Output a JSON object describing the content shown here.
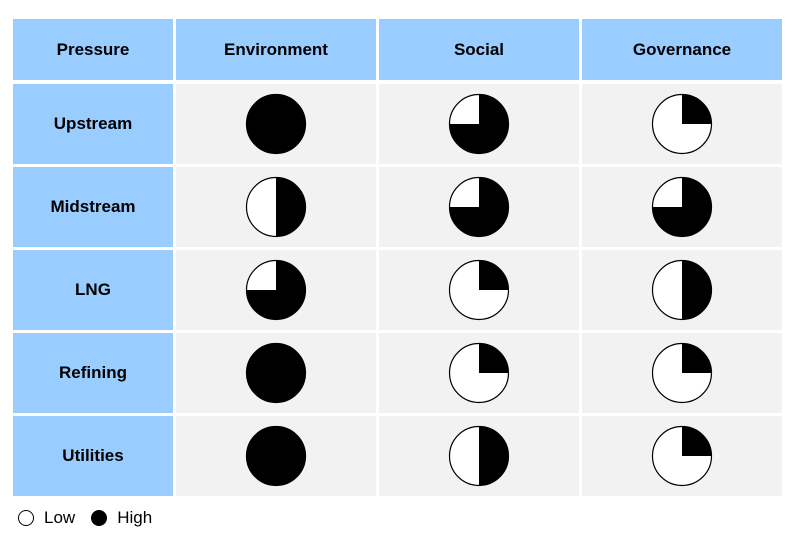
{
  "chart_data": {
    "type": "table",
    "corner_label": "Pressure",
    "columns": [
      "Environment",
      "Social",
      "Governance"
    ],
    "rows": [
      {
        "label": "Upstream",
        "values": [
          1.0,
          0.75,
          0.25
        ]
      },
      {
        "label": "Midstream",
        "values": [
          0.5,
          0.75,
          0.75
        ]
      },
      {
        "label": "LNG",
        "values": [
          0.75,
          0.25,
          0.5
        ]
      },
      {
        "label": "Refining",
        "values": [
          1.0,
          0.25,
          0.25
        ]
      },
      {
        "label": "Utilities",
        "values": [
          1.0,
          0.5,
          0.25
        ]
      }
    ],
    "value_meaning": "fraction of Harvey ball filled (0 = Low, 1 = High)",
    "legend": {
      "low": "Low",
      "high": "High"
    }
  },
  "colors": {
    "header_bg": "#99ccff",
    "cell_bg": "#f2f2f2",
    "fill": "#000000",
    "empty": "#ffffff",
    "gridline": "#ffffff"
  }
}
